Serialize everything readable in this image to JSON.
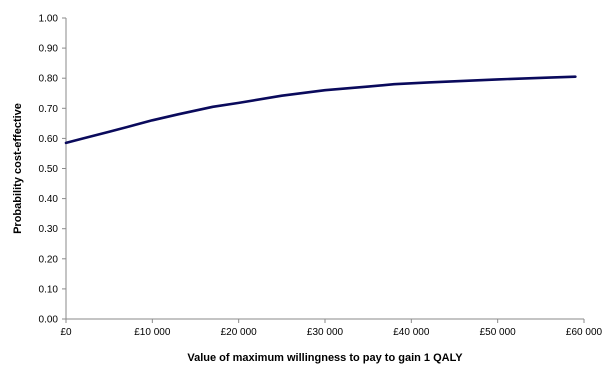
{
  "chart_data": {
    "type": "line",
    "xlabel": "Value of maximum willingness to pay to gain 1 QALY",
    "ylabel": "Probability cost-effective",
    "xlim": [
      0,
      60000
    ],
    "ylim": [
      0,
      1
    ],
    "x_ticks": [
      0,
      10000,
      20000,
      30000,
      40000,
      50000,
      60000
    ],
    "x_tick_labels": [
      "£0",
      "£10 000",
      "£20 000",
      "£30 000",
      "£40 000",
      "£50 000",
      "£60 000"
    ],
    "y_ticks": [
      0,
      0.1,
      0.2,
      0.3,
      0.4,
      0.5,
      0.6,
      0.7,
      0.8,
      0.9,
      1.0
    ],
    "y_tick_labels": [
      "0.00",
      "0.10",
      "0.20",
      "0.30",
      "0.40",
      "0.50",
      "0.60",
      "0.70",
      "0.80",
      "0.90",
      "1.00"
    ],
    "grid": false,
    "legend": "none",
    "series": [
      {
        "color": "#0a0a5c",
        "x": [
          0,
          2000,
          5000,
          8000,
          10000,
          13000,
          17000,
          20000,
          25000,
          30000,
          35000,
          38000,
          42000,
          46000,
          50000,
          54000,
          56000,
          59000
        ],
        "values": [
          0.585,
          0.6,
          0.622,
          0.645,
          0.66,
          0.68,
          0.705,
          0.718,
          0.742,
          0.76,
          0.772,
          0.78,
          0.786,
          0.791,
          0.796,
          0.8,
          0.802,
          0.805
        ]
      }
    ]
  }
}
